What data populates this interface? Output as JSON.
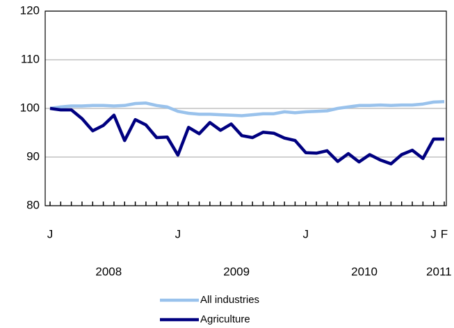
{
  "chart_data": {
    "type": "line",
    "categories": [
      "J",
      null,
      null,
      null,
      null,
      null,
      null,
      null,
      null,
      null,
      null,
      null,
      "J",
      null,
      null,
      null,
      null,
      null,
      null,
      null,
      null,
      null,
      null,
      null,
      "J",
      null,
      null,
      null,
      null,
      null,
      null,
      null,
      null,
      null,
      null,
      null,
      "J",
      "F"
    ],
    "x_group_labels": [
      "2008",
      "2009",
      "2010",
      "2011"
    ],
    "series": [
      {
        "name": "All industries",
        "color": "#99c2ec",
        "values": [
          100,
          100.3,
          100.5,
          100.5,
          100.6,
          100.6,
          100.5,
          100.6,
          101,
          101.1,
          100.6,
          100.3,
          99.4,
          99,
          98.8,
          98.8,
          98.7,
          98.6,
          98.5,
          98.7,
          98.9,
          98.9,
          99.3,
          99.1,
          99.3,
          99.4,
          99.5,
          100,
          100.3,
          100.6,
          100.6,
          100.7,
          100.6,
          100.7,
          100.7,
          100.9,
          101.3,
          101.4
        ]
      },
      {
        "name": "Agriculture",
        "color": "#000080",
        "values": [
          100,
          99.7,
          99.7,
          97.9,
          95.4,
          96.5,
          98.6,
          93.4,
          97.7,
          96.6,
          94,
          94.1,
          90.4,
          96.1,
          94.8,
          97.1,
          95.5,
          96.8,
          94.4,
          94,
          95.1,
          94.9,
          93.9,
          93.4,
          90.9,
          90.8,
          91.3,
          89.1,
          90.7,
          89,
          90.5,
          89.4,
          88.6,
          90.5,
          91.4,
          89.7,
          93.7,
          93.7
        ]
      }
    ],
    "ylim": [
      80,
      120
    ],
    "yticks": [
      80,
      90,
      100,
      110,
      120
    ],
    "grid": true,
    "legend": "bottom"
  }
}
